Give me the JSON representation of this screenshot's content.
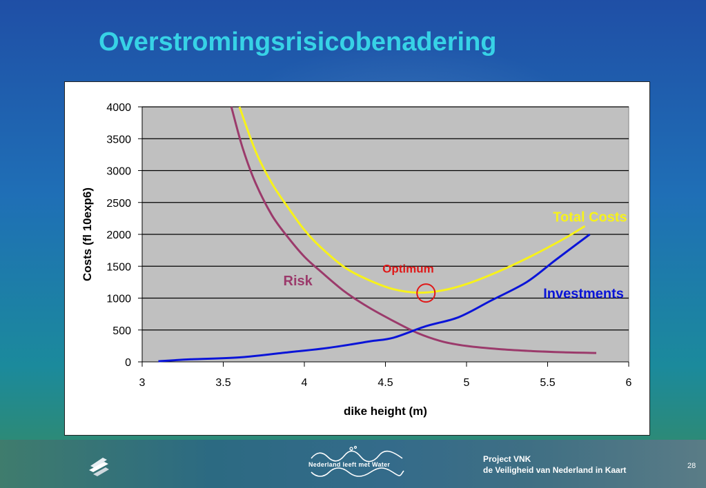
{
  "slide": {
    "title": "Overstromingsrisicobenadering",
    "page_number": "28"
  },
  "footer": {
    "nlw_logo_text": "Nederland leeft met Water",
    "project_name": "Project VNK",
    "project_subtitle": "de Veiligheid van Nederland in Kaart"
  },
  "colors": {
    "title": "#37d2e6",
    "plot_background": "#c0c0c0",
    "risk": "#9b3a6b",
    "investments": "#0a14d8",
    "total_costs": "#f7f21a",
    "optimum": "#e01818"
  },
  "icons": [
    "vnk-logo-icon",
    "nederland-leeft-met-water-logo-icon"
  ],
  "chart_data": {
    "type": "line",
    "title": "",
    "xlabel": "dike height (m)",
    "ylabel": "Costs (fl 10exp6)",
    "xlim": [
      3,
      6
    ],
    "ylim": [
      0,
      4000
    ],
    "x_ticks": [
      "3",
      "3.5",
      "4",
      "4.5",
      "5",
      "5.5",
      "6"
    ],
    "y_ticks": [
      "0",
      "500",
      "1000",
      "1500",
      "2000",
      "2500",
      "3000",
      "3500",
      "4000"
    ],
    "grid": "horizontal",
    "series": [
      {
        "name": "Risk",
        "color": "#9b3a6b",
        "x": [
          3.55,
          3.62,
          3.7,
          3.8,
          3.9,
          4.0,
          4.1,
          4.25,
          4.4,
          4.55,
          4.7,
          4.85,
          5.0,
          5.2,
          5.4,
          5.6,
          5.8
        ],
        "y": [
          4000,
          3350,
          2800,
          2300,
          1950,
          1650,
          1420,
          1100,
          850,
          640,
          450,
          320,
          250,
          200,
          170,
          150,
          140
        ]
      },
      {
        "name": "Investments",
        "color": "#0a14d8",
        "x": [
          3.1,
          3.3,
          3.6,
          3.9,
          4.15,
          4.4,
          4.55,
          4.75,
          4.95,
          5.15,
          5.37,
          5.55,
          5.76
        ],
        "y": [
          10,
          40,
          70,
          150,
          220,
          320,
          380,
          560,
          700,
          960,
          1250,
          1600,
          2000
        ]
      },
      {
        "name": "Total Costs",
        "color": "#f7f21a",
        "x": [
          3.6,
          3.7,
          3.8,
          3.9,
          4.0,
          4.1,
          4.25,
          4.4,
          4.55,
          4.7,
          4.85,
          5.0,
          5.2,
          5.4,
          5.6,
          5.73
        ],
        "y": [
          4000,
          3300,
          2800,
          2420,
          2070,
          1800,
          1480,
          1280,
          1140,
          1085,
          1120,
          1220,
          1420,
          1660,
          1930,
          2130
        ]
      }
    ],
    "annotations": [
      {
        "text": "Optimum",
        "x": 4.75,
        "y": 1080,
        "color": "#e01818",
        "marker": "circle"
      },
      {
        "text": "Risk",
        "color": "#9b3a6b"
      },
      {
        "text": "Investments",
        "color": "#0a14d8"
      },
      {
        "text": "Total Costs",
        "color": "#f7f21a"
      }
    ]
  }
}
